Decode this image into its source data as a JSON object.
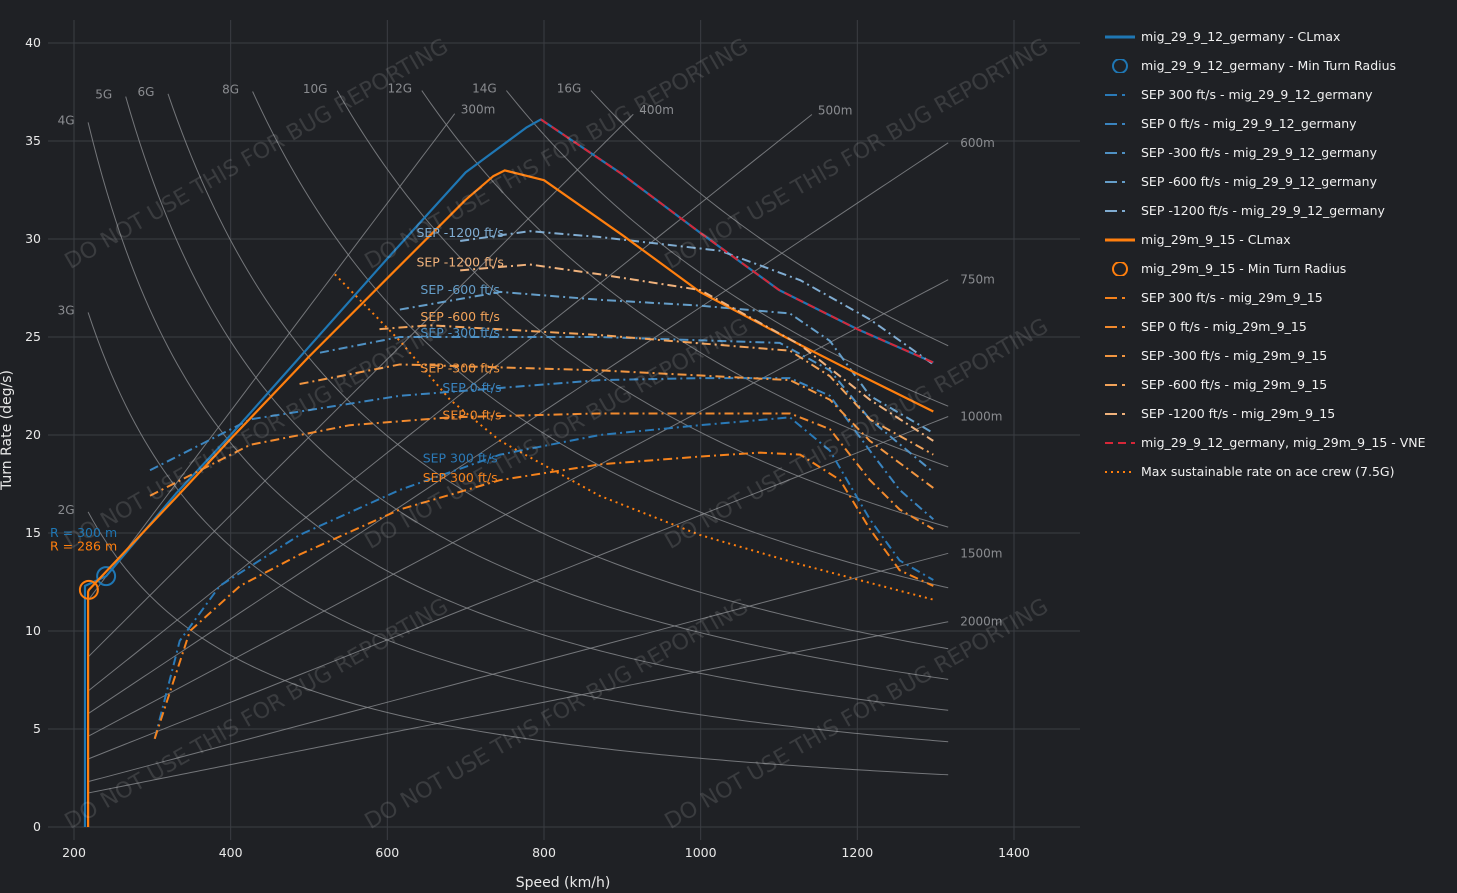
{
  "chart_data": {
    "type": "line",
    "xlabel": "Speed (km/h)",
    "ylabel": "Turn Rate (deg/s)",
    "xlim": [
      180,
      1490
    ],
    "ylim": [
      0,
      41
    ],
    "xticks": [
      200,
      400,
      600,
      800,
      1000,
      1200,
      1400
    ],
    "yticks": [
      0,
      5,
      10,
      15,
      20,
      25,
      30,
      35,
      40
    ],
    "grid": true,
    "legend_position": "right",
    "watermark": "DO NOT USE THIS FOR BUG REPORTING",
    "g_lines": [
      2,
      3,
      4,
      5,
      6,
      8,
      10,
      12,
      14,
      16
    ],
    "g_labels": [
      "2G",
      "3G",
      "4G",
      "5G",
      "6G",
      "8G",
      "10G",
      "12G",
      "14G",
      "16G"
    ],
    "radius_lines": [
      300,
      400,
      500,
      600,
      750,
      1000,
      1500,
      2000
    ],
    "radius_labels": [
      "300m",
      "400m",
      "500m",
      "600m",
      "750m",
      "1000m",
      "1500m",
      "2000m"
    ],
    "series": [
      {
        "name": "mig_29_9_12_germany - CLmax",
        "color": "#1f77b4",
        "dash": "solid",
        "x": [
          214,
          214,
          241,
          330,
          400,
          500,
          600,
          700,
          778,
          796,
          900,
          1000,
          1100,
          1200,
          1297
        ],
        "y": [
          0,
          12.3,
          12.8,
          17,
          20,
          24.5,
          29,
          33.4,
          35.7,
          36.1,
          33.3,
          30.3,
          27.4,
          25.4,
          23.7
        ]
      },
      {
        "name": "mig_29_9_12_germany - Min Turn Radius",
        "color": "#1f77b4",
        "marker": "circle",
        "x": [
          241
        ],
        "y": [
          12.8
        ]
      },
      {
        "name": "SEP 300 ft/s - mig_29_9_12_germany",
        "color": "#2a7ab8",
        "dash": "dashdot",
        "x": [
          303,
          335,
          386,
          488,
          616,
          744,
          871,
          999,
          1114,
          1165,
          1216,
          1254,
          1297
        ],
        "y": [
          4.5,
          9.5,
          12.3,
          14.9,
          17.2,
          19.0,
          20.0,
          20.5,
          20.9,
          19.2,
          15.7,
          13.6,
          12.6
        ]
      },
      {
        "name": "SEP 0 ft/s - mig_29_9_12_germany",
        "color": "#3a84bf",
        "dash": "dashdot",
        "x": [
          297,
          425,
          616,
          744,
          871,
          999,
          1114,
          1165,
          1216,
          1254,
          1297
        ],
        "y": [
          18.2,
          20.8,
          22.0,
          22.4,
          22.8,
          22.9,
          22.9,
          22.0,
          19.2,
          17.2,
          15.7
        ]
      },
      {
        "name": "SEP -300 ft/s - mig_29_9_12_germany",
        "color": "#4f91c4",
        "dash": "dashdot",
        "x": [
          514,
          616,
          871,
          1101,
          1165,
          1216,
          1297
        ],
        "y": [
          24.2,
          25.0,
          25.0,
          24.7,
          23.3,
          20.8,
          18.1
        ]
      },
      {
        "name": "SEP -600 ft/s - mig_29_9_12_germany",
        "color": "#659ec9",
        "dash": "dashdot",
        "x": [
          616,
          744,
          871,
          999,
          1114,
          1165,
          1216,
          1297
        ],
        "y": [
          26.4,
          27.3,
          26.9,
          26.6,
          26.2,
          24.8,
          22.0,
          20.1
        ]
      },
      {
        "name": "SEP -1200 ft/s - mig_29_9_12_germany",
        "color": "#80acd1",
        "dash": "dashdot",
        "x": [
          693,
          782,
          871,
          1025,
          1127,
          1216,
          1297
        ],
        "y": [
          29.9,
          30.4,
          30.1,
          29.4,
          27.9,
          25.9,
          23.6
        ]
      },
      {
        "name": "mig_29m_9_15 - CLmax",
        "color": "#ff7f0e",
        "dash": "solid",
        "x": [
          218,
          218,
          219,
          330,
          400,
          500,
          600,
          700,
          735,
          750,
          800,
          900,
          999,
          1127,
          1191,
          1297
        ],
        "y": [
          0,
          12.0,
          12.1,
          16.8,
          19.8,
          24,
          28,
          32,
          33.2,
          33.5,
          33,
          30.2,
          27.3,
          24.6,
          23.3,
          21.2
        ]
      },
      {
        "name": "mig_29m_9_15 - Min Turn Radius",
        "color": "#ff7f0e",
        "marker": "circle",
        "x": [
          219
        ],
        "y": [
          12.1
        ]
      },
      {
        "name": "SEP 300 ft/s - mig_29m_9_15",
        "color": "#f5821c",
        "dash": "dashdot",
        "x": [
          303,
          348,
          412,
          488,
          616,
          744,
          871,
          999,
          1076,
          1127,
          1178,
          1216,
          1254,
          1297
        ],
        "y": [
          4.5,
          10,
          12.3,
          13.9,
          16.2,
          17.7,
          18.5,
          18.9,
          19.1,
          19.0,
          17.7,
          15.2,
          13.1,
          12.3
        ]
      },
      {
        "name": "SEP 0 ft/s - mig_29m_9_15",
        "color": "#f28a2e",
        "dash": "dashdot",
        "x": [
          297,
          425,
          552,
          680,
          871,
          1114,
          1165,
          1216,
          1254,
          1297
        ],
        "y": [
          16.9,
          19.5,
          20.5,
          20.9,
          21.1,
          21.1,
          20.3,
          17.7,
          16.2,
          15.2
        ]
      },
      {
        "name": "SEP -300 ft/s - mig_29m_9_15",
        "color": "#f29641",
        "dash": "dashdot",
        "x": [
          488,
          616,
          871,
          1114,
          1165,
          1216,
          1297
        ],
        "y": [
          22.6,
          23.6,
          23.3,
          22.8,
          21.8,
          19.7,
          17.3
        ]
      },
      {
        "name": "SEP -600 ft/s - mig_29m_9_15",
        "color": "#f2a35a",
        "dash": "dashdot",
        "x": [
          590,
          654,
          871,
          1114,
          1165,
          1216,
          1297
        ],
        "y": [
          25.4,
          25.6,
          25.1,
          24.3,
          23.0,
          20.8,
          19.0
        ]
      },
      {
        "name": "SEP -1200 ft/s - mig_29m_9_15",
        "color": "#f0b27c",
        "dash": "dashdot",
        "x": [
          693,
          782,
          871,
          999,
          1127,
          1216,
          1297
        ],
        "y": [
          28.4,
          28.7,
          28.2,
          27.4,
          24.6,
          21.8,
          19.7
        ]
      },
      {
        "name": "mig_29_9_12_germany, mig_29m_9_15 - VNE",
        "color": "#d62738",
        "dash": "dash",
        "x": [
          796,
          900,
          1000,
          1100,
          1200,
          1297
        ],
        "y": [
          36.1,
          33.3,
          30.3,
          27.4,
          25.4,
          23.7
        ]
      },
      {
        "name": "Max sustainable rate on ace crew (7.5G)",
        "color": "#ff7f0e",
        "dash": "dot",
        "x": [
          533,
          616,
          680,
          744,
          871,
          999,
          1127,
          1297
        ],
        "y": [
          28.2,
          24.8,
          21.8,
          19.7,
          16.9,
          14.9,
          13.4,
          11.6
        ]
      }
    ],
    "annotations": [
      {
        "text": "SEP -1200 ft/s",
        "x": 693,
        "y": 30.1,
        "color": "#80acd1"
      },
      {
        "text": "SEP -1200 ft/s",
        "x": 693,
        "y": 28.6,
        "color": "#f0b27c"
      },
      {
        "text": "SEP -600 ft/s",
        "x": 693,
        "y": 27.2,
        "color": "#659ec9"
      },
      {
        "text": "SEP -600 ft/s",
        "x": 693,
        "y": 25.6,
        "color": "#f2a35a"
      },
      {
        "text": "SEP -300 ft/s",
        "x": 693,
        "y": 25.0,
        "color": "#4f91c4"
      },
      {
        "text": "SEP -300 ft/s",
        "x": 693,
        "y": 23.5,
        "color": "#f29641"
      },
      {
        "text": "SEP 0 ft/s",
        "x": 708,
        "y": 22.2,
        "color": "#3a84bf"
      },
      {
        "text": "SEP 0 ft/s",
        "x": 708,
        "y": 20.8,
        "color": "#f28a2e"
      },
      {
        "text": "SEP 300 ft/s",
        "x": 693,
        "y": 18.6,
        "color": "#2a7ab8"
      },
      {
        "text": "SEP 300 ft/s",
        "x": 693,
        "y": 17.6,
        "color": "#f5821c"
      },
      {
        "text": "R = 300 m",
        "x": 165,
        "y": 14.8,
        "color": "#1f77b4"
      },
      {
        "text": "R = 286 m",
        "x": 165,
        "y": 14.1,
        "color": "#ff7f0e"
      }
    ]
  }
}
